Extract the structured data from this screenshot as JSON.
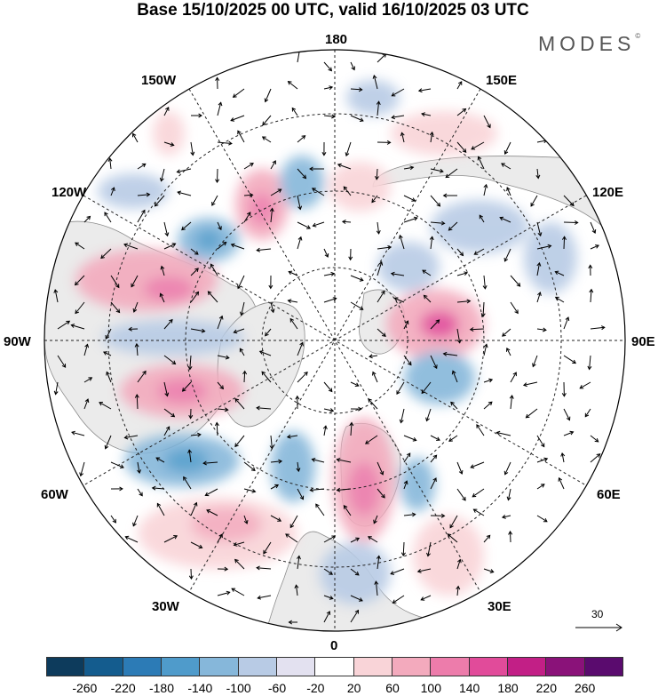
{
  "header": {
    "title": "Base 15/10/2025 00 UTC, valid 16/10/2025 03 UTC",
    "brand": "MODES",
    "brand_mark": "©"
  },
  "map": {
    "projection": "north-polar-stereographic",
    "longitude_labels": {
      "top": "180",
      "top_left": "150W",
      "top_right": "150E",
      "upper_left": "120W",
      "upper_right": "120E",
      "left": "90W",
      "right": "90E",
      "lower_left": "60W",
      "lower_right": "60E",
      "bottom_left": "30W",
      "bottom_right": "30E",
      "bottom": "0"
    },
    "reference_vector_label": "30",
    "land_color": "#ebebeb",
    "ocean_color": "#ffffff"
  },
  "colorbar": {
    "ticks": [
      "-260",
      "-220",
      "-180",
      "-140",
      "-100",
      "-60",
      "-20",
      "20",
      "60",
      "100",
      "140",
      "180",
      "220",
      "260"
    ],
    "colors": [
      "#0d3b5c",
      "#145c8e",
      "#2c7bb6",
      "#4f9bcb",
      "#86b7da",
      "#b8cbe5",
      "#e3e1f0",
      "#ffffff",
      "#f9d4d8",
      "#f3aabd",
      "#ed7cab",
      "#e14b9a",
      "#c21f86",
      "#8a1279",
      "#5a0b6e"
    ]
  }
}
